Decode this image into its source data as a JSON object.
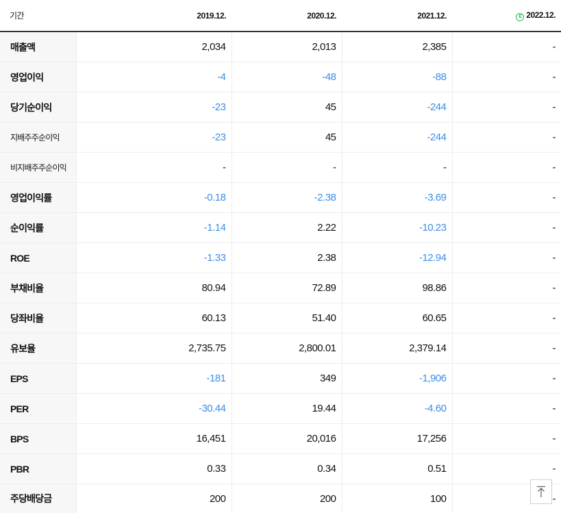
{
  "header": {
    "period_label": "기간",
    "periods": [
      "2019.12.",
      "2020.12.",
      "2021.12.",
      "2022.12."
    ],
    "estimate_badge": "E"
  },
  "rows": [
    {
      "label": "매출액",
      "small": false,
      "values": [
        "2,034",
        "2,013",
        "2,385",
        "-"
      ],
      "neg": [
        false,
        false,
        false,
        false
      ]
    },
    {
      "label": "영업이익",
      "small": false,
      "values": [
        "-4",
        "-48",
        "-88",
        "-"
      ],
      "neg": [
        true,
        true,
        true,
        false
      ]
    },
    {
      "label": "당기순이익",
      "small": false,
      "values": [
        "-23",
        "45",
        "-244",
        "-"
      ],
      "neg": [
        true,
        false,
        true,
        false
      ]
    },
    {
      "label": "지배주주순이익",
      "small": true,
      "values": [
        "-23",
        "45",
        "-244",
        "-"
      ],
      "neg": [
        true,
        false,
        true,
        false
      ]
    },
    {
      "label": "비지배주주순이익",
      "small": true,
      "values": [
        "-",
        "-",
        "-",
        "-"
      ],
      "neg": [
        false,
        false,
        false,
        false
      ]
    },
    {
      "label": "영업이익률",
      "small": false,
      "group_start": true,
      "values": [
        "-0.18",
        "-2.38",
        "-3.69",
        "-"
      ],
      "neg": [
        true,
        true,
        true,
        false
      ]
    },
    {
      "label": "순이익률",
      "small": false,
      "values": [
        "-1.14",
        "2.22",
        "-10.23",
        "-"
      ],
      "neg": [
        true,
        false,
        true,
        false
      ]
    },
    {
      "label": "ROE",
      "small": false,
      "values": [
        "-1.33",
        "2.38",
        "-12.94",
        "-"
      ],
      "neg": [
        true,
        false,
        true,
        false
      ]
    },
    {
      "label": "부채비율",
      "small": false,
      "group_start": true,
      "values": [
        "80.94",
        "72.89",
        "98.86",
        "-"
      ],
      "neg": [
        false,
        false,
        false,
        false
      ]
    },
    {
      "label": "당좌비율",
      "small": false,
      "values": [
        "60.13",
        "51.40",
        "60.65",
        "-"
      ],
      "neg": [
        false,
        false,
        false,
        false
      ]
    },
    {
      "label": "유보율",
      "small": false,
      "values": [
        "2,735.75",
        "2,800.01",
        "2,379.14",
        "-"
      ],
      "neg": [
        false,
        false,
        false,
        false
      ]
    },
    {
      "label": "EPS",
      "small": false,
      "group_start": true,
      "values": [
        "-181",
        "349",
        "-1,906",
        "-"
      ],
      "neg": [
        true,
        false,
        true,
        false
      ]
    },
    {
      "label": "PER",
      "small": false,
      "values": [
        "-30.44",
        "19.44",
        "-4.60",
        "-"
      ],
      "neg": [
        true,
        false,
        true,
        false
      ]
    },
    {
      "label": "BPS",
      "small": false,
      "values": [
        "16,451",
        "20,016",
        "17,256",
        "-"
      ],
      "neg": [
        false,
        false,
        false,
        false
      ]
    },
    {
      "label": "PBR",
      "small": false,
      "values": [
        "0.33",
        "0.34",
        "0.51",
        "-"
      ],
      "neg": [
        false,
        false,
        false,
        false
      ]
    },
    {
      "label": "주당배당금",
      "small": false,
      "group_start": true,
      "values": [
        "200",
        "200",
        "100",
        "-"
      ],
      "neg": [
        false,
        false,
        false,
        false
      ]
    }
  ],
  "colors": {
    "negative": "#3b8ee8",
    "estimate": "#1db954",
    "label_bg": "#f7f7f7"
  },
  "scroll_top_icon": "arrow-up-to-top-icon"
}
